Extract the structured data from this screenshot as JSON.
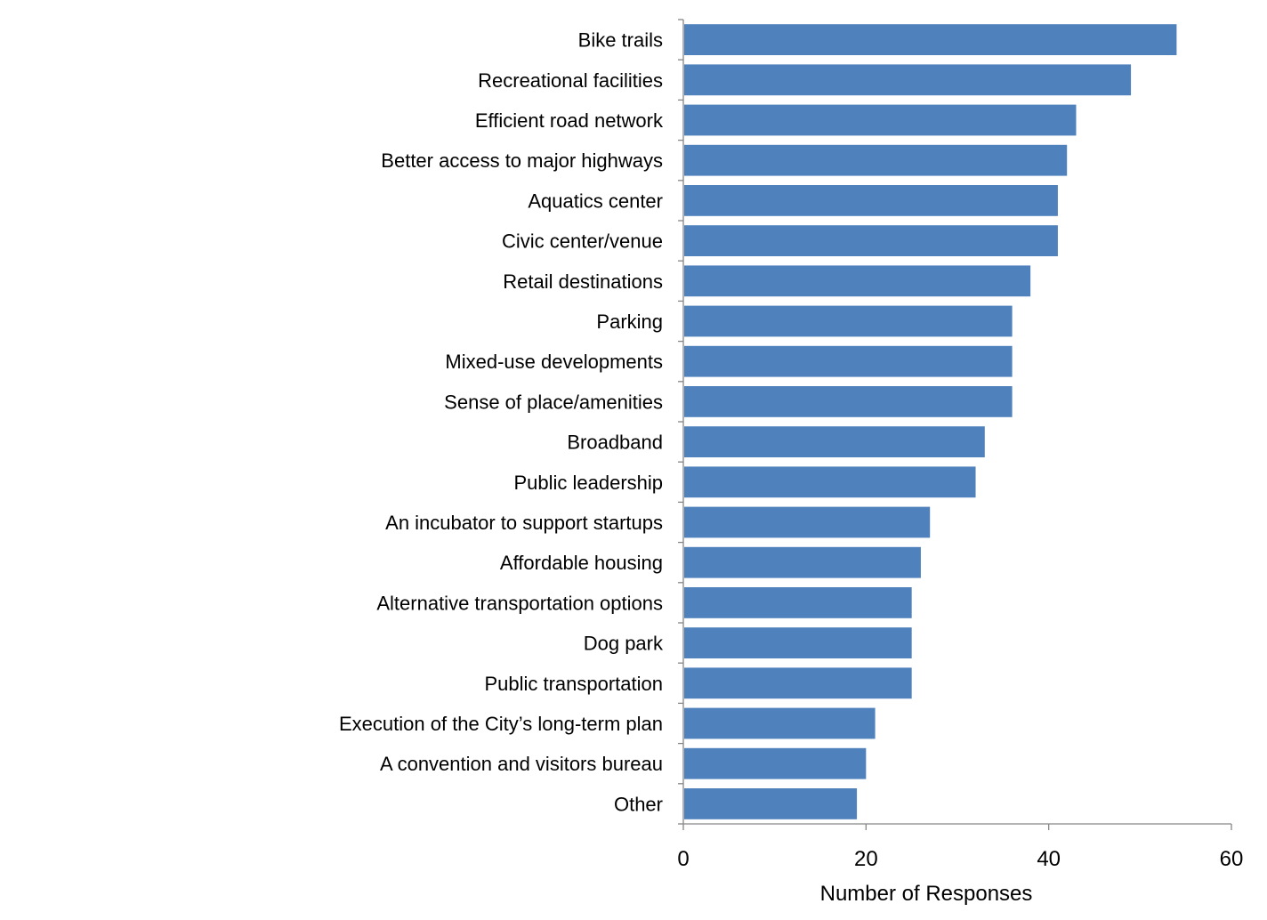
{
  "chart_data": {
    "type": "bar",
    "orientation": "horizontal",
    "categories": [
      "Bike trails",
      "Recreational facilities",
      "Efficient road network",
      "Better access to major highways",
      "Aquatics center",
      "Civic center/venue",
      "Retail destinations",
      "Parking",
      "Mixed-use developments",
      "Sense of place/amenities",
      "Broadband",
      "Public leadership",
      "An incubator to support startups",
      "Affordable housing",
      "Alternative transportation options",
      "Dog park",
      "Public transportation",
      "Execution of the City’s long-term plan",
      "A convention and visitors bureau",
      "Other"
    ],
    "values": [
      54,
      49,
      43,
      42,
      41,
      41,
      38,
      36,
      36,
      36,
      33,
      32,
      27,
      26,
      25,
      25,
      25,
      21,
      20,
      19
    ],
    "title": "",
    "xlabel": "Number of Responses",
    "ylabel": "",
    "xlim": [
      0,
      60
    ],
    "xticks": [
      0,
      20,
      40,
      60
    ],
    "bar_color": "#4f81bd",
    "grid": false,
    "legend": "none"
  }
}
